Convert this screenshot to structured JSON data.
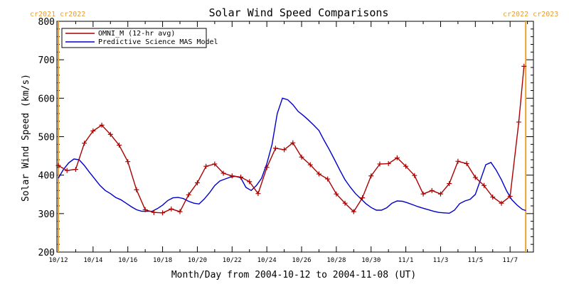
{
  "chart_data": {
    "type": "line",
    "title": "Solar Wind Speed Comparisons",
    "xlabel": "Month/Day from 2004-10-12 to 2004-11-08 (UT)",
    "ylabel": "Solar Wind Speed (km/s)",
    "ylim": [
      200,
      800
    ],
    "xlim_days": [
      0,
      27
    ],
    "yticks": [
      200,
      300,
      400,
      500,
      600,
      700,
      800
    ],
    "xticks": [
      {
        "day": 0,
        "label": "10/12"
      },
      {
        "day": 2,
        "label": "10/14"
      },
      {
        "day": 4,
        "label": "10/16"
      },
      {
        "day": 6,
        "label": "10/18"
      },
      {
        "day": 8,
        "label": "10/20"
      },
      {
        "day": 10,
        "label": "10/22"
      },
      {
        "day": 12,
        "label": "10/24"
      },
      {
        "day": 14,
        "label": "10/26"
      },
      {
        "day": 16,
        "label": "10/28"
      },
      {
        "day": 18,
        "label": "10/30"
      },
      {
        "day": 20,
        "label": "11/1"
      },
      {
        "day": 22,
        "label": "11/3"
      },
      {
        "day": 24,
        "label": "11/5"
      },
      {
        "day": 26,
        "label": "11/7"
      }
    ],
    "rotation_markers": {
      "left": {
        "label": "cr2021 cr2022",
        "day": 0.0
      },
      "right": {
        "label": "cr2022 cr2023",
        "day": 26.9
      }
    },
    "legend_position": "top-left",
    "series": [
      {
        "name": "OMNI_M (12-hr avg)",
        "color": "#aa0000",
        "markers": true,
        "x": [
          0.0,
          0.5,
          1.0,
          1.5,
          2.0,
          2.5,
          3.0,
          3.5,
          4.0,
          4.5,
          5.0,
          5.5,
          6.0,
          6.5,
          7.0,
          7.5,
          8.0,
          8.5,
          9.0,
          9.5,
          10.0,
          10.5,
          11.0,
          11.5,
          12.0,
          12.5,
          13.0,
          13.5,
          14.0,
          14.5,
          15.0,
          15.5,
          16.0,
          16.5,
          17.0,
          17.5,
          18.0,
          18.5,
          19.0,
          19.5,
          20.0,
          20.5,
          21.0,
          21.5,
          22.0,
          22.5,
          23.0,
          23.5,
          24.0,
          24.5,
          25.0,
          25.5,
          26.0,
          26.5,
          26.8
        ],
        "y": [
          425,
          412,
          415,
          483,
          515,
          530,
          506,
          478,
          435,
          362,
          310,
          303,
          302,
          312,
          305,
          349,
          380,
          423,
          429,
          405,
          398,
          395,
          383,
          352,
          420,
          470,
          466,
          484,
          447,
          427,
          403,
          390,
          351,
          327,
          305,
          341,
          398,
          429,
          430,
          445,
          423,
          399,
          351,
          360,
          351,
          378,
          436,
          430,
          394,
          373,
          343,
          327,
          345,
          538,
          683
        ]
      },
      {
        "name": "Predictive Science MAS Model",
        "color": "#0000cc",
        "markers": false,
        "x": [
          0.0,
          0.3,
          0.6,
          0.9,
          1.2,
          1.5,
          1.8,
          2.1,
          2.4,
          2.7,
          3.0,
          3.3,
          3.6,
          3.9,
          4.2,
          4.5,
          4.8,
          5.1,
          5.4,
          5.7,
          6.0,
          6.3,
          6.6,
          6.9,
          7.2,
          7.5,
          7.8,
          8.1,
          8.4,
          8.7,
          9.0,
          9.3,
          9.6,
          9.9,
          10.2,
          10.5,
          10.8,
          11.1,
          11.4,
          11.7,
          12.0,
          12.3,
          12.6,
          12.9,
          13.2,
          13.5,
          13.8,
          14.1,
          14.4,
          14.7,
          15.0,
          15.3,
          15.6,
          15.9,
          16.2,
          16.5,
          16.8,
          17.1,
          17.4,
          17.7,
          18.0,
          18.3,
          18.6,
          18.9,
          19.2,
          19.5,
          19.8,
          20.1,
          20.4,
          20.7,
          21.0,
          21.3,
          21.6,
          21.9,
          22.2,
          22.5,
          22.8,
          23.1,
          23.4,
          23.7,
          24.0,
          24.3,
          24.6,
          24.9,
          25.2,
          25.5,
          25.8,
          26.1,
          26.4,
          26.7,
          26.9
        ],
        "y": [
          392,
          415,
          432,
          442,
          440,
          425,
          407,
          390,
          373,
          360,
          352,
          342,
          336,
          327,
          318,
          310,
          306,
          306,
          306,
          313,
          322,
          334,
          341,
          342,
          339,
          332,
          327,
          325,
          338,
          354,
          373,
          385,
          390,
          395,
          397,
          393,
          368,
          360,
          373,
          392,
          430,
          480,
          560,
          600,
          596,
          583,
          566,
          555,
          543,
          530,
          516,
          490,
          466,
          440,
          413,
          388,
          369,
          352,
          339,
          326,
          316,
          309,
          309,
          315,
          327,
          333,
          332,
          328,
          323,
          318,
          314,
          310,
          306,
          303,
          302,
          301,
          309,
          326,
          333,
          337,
          350,
          388,
          427,
          433,
          413,
          388,
          359,
          336,
          322,
          311,
          308
        ]
      }
    ]
  }
}
